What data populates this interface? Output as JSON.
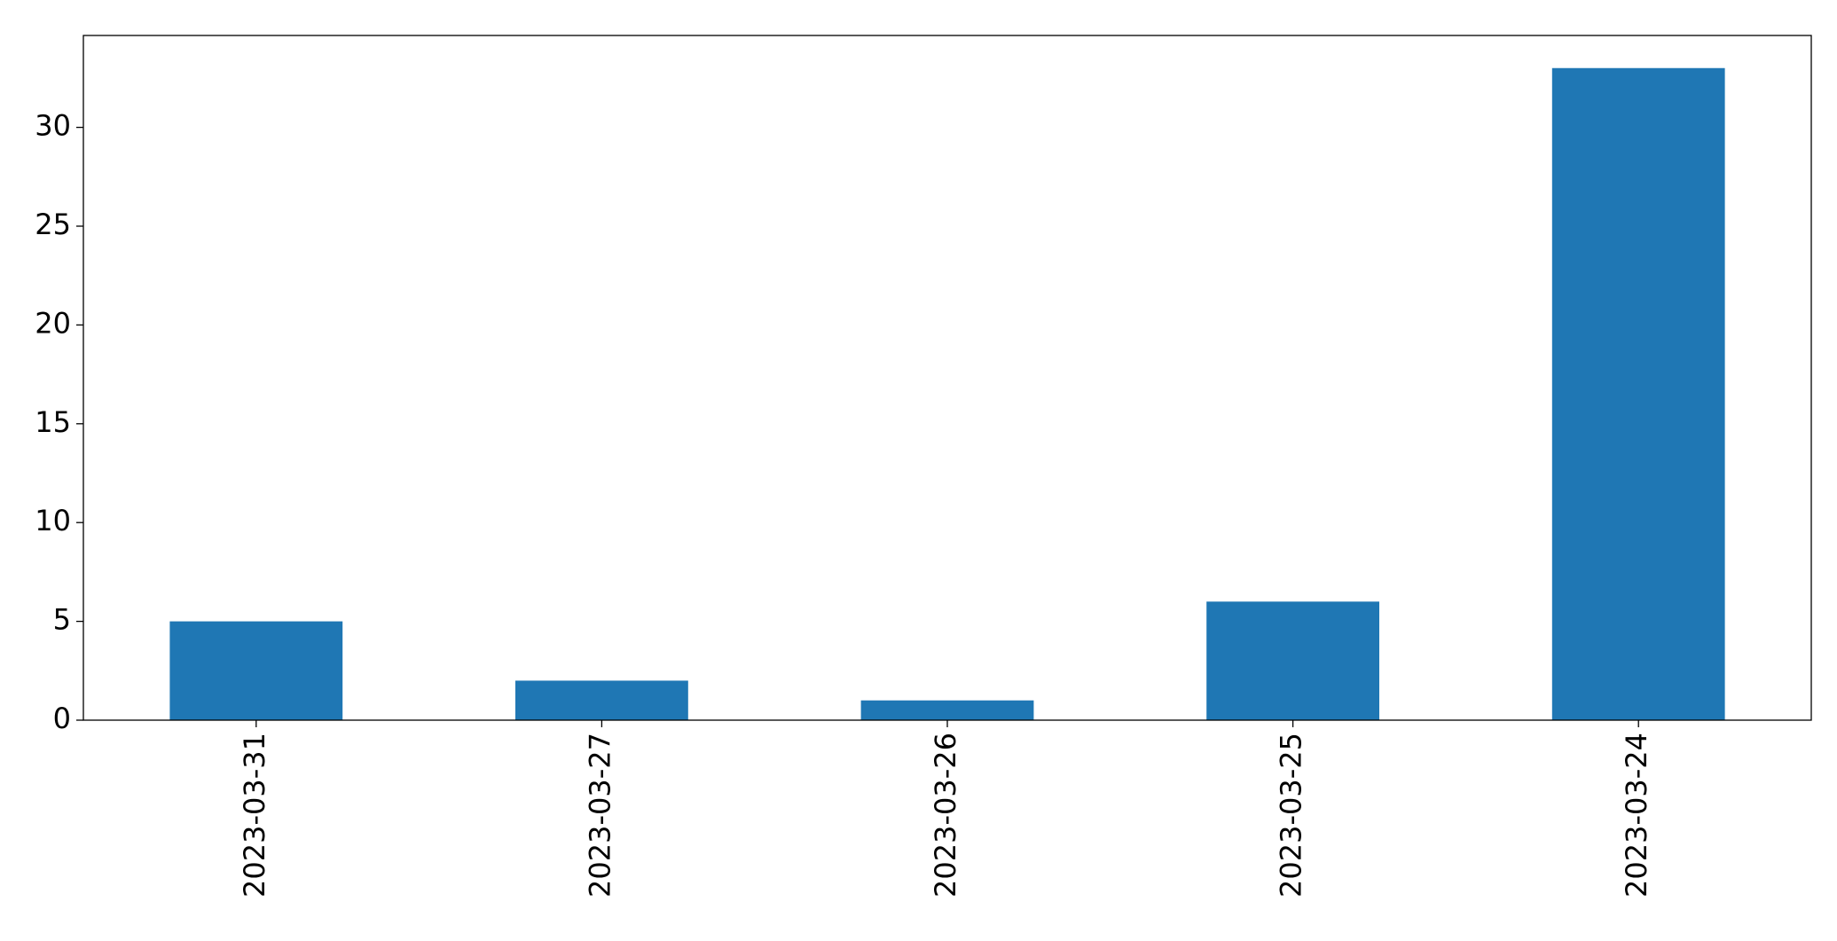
{
  "chart_data": {
    "type": "bar",
    "categories": [
      "2023-03-31",
      "2023-03-27",
      "2023-03-26",
      "2023-03-25",
      "2023-03-24"
    ],
    "values": [
      5,
      2,
      1,
      6,
      33
    ],
    "color": "#1f77b4",
    "ylim": [
      0,
      34.65
    ],
    "yticks": [
      0,
      5,
      10,
      15,
      20,
      25,
      30
    ],
    "grid": false
  }
}
